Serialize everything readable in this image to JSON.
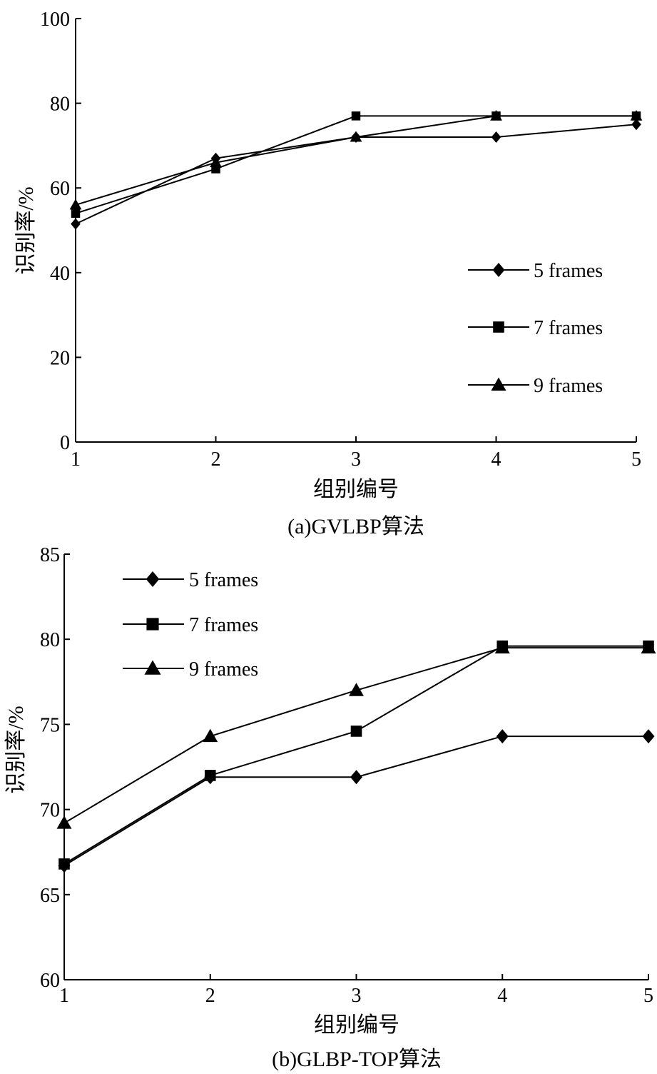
{
  "chart_data": [
    {
      "type": "line",
      "caption": "(a)GVLBP算法",
      "xlabel": "组别编号",
      "ylabel": "识别率/%",
      "x": [
        1,
        2,
        3,
        4,
        5
      ],
      "x_ticks": [
        "1",
        "2",
        "3",
        "4",
        "5"
      ],
      "ylim": [
        0,
        100
      ],
      "y_ticks": [
        "0",
        "20",
        "40",
        "60",
        "80",
        "100"
      ],
      "legend_position": "right",
      "grid": false,
      "series": [
        {
          "name": "5 frames",
          "marker": "diamond",
          "values": [
            51.5,
            67,
            72,
            72,
            75
          ]
        },
        {
          "name": "7 frames",
          "marker": "square",
          "values": [
            54,
            64.5,
            77,
            77,
            77
          ]
        },
        {
          "name": "9 frames",
          "marker": "triangle",
          "values": [
            56,
            66,
            72,
            77,
            77
          ]
        }
      ]
    },
    {
      "type": "line",
      "caption": "(b)GLBP-TOP算法",
      "xlabel": "组别编号",
      "ylabel": "识别率/%",
      "x": [
        1,
        2,
        3,
        4,
        5
      ],
      "x_ticks": [
        "1",
        "2",
        "3",
        "4",
        "5"
      ],
      "ylim": [
        60,
        85
      ],
      "y_ticks": [
        "60",
        "65",
        "70",
        "75",
        "80",
        "85"
      ],
      "legend_position": "top-left",
      "grid": false,
      "series": [
        {
          "name": "5 frames",
          "marker": "diamond",
          "values": [
            66.7,
            71.9,
            71.9,
            74.3,
            74.3
          ]
        },
        {
          "name": "7 frames",
          "marker": "square",
          "values": [
            66.8,
            72,
            74.6,
            79.6,
            79.6
          ]
        },
        {
          "name": "9 frames",
          "marker": "triangle",
          "values": [
            69.2,
            74.3,
            77,
            79.5,
            79.5
          ]
        }
      ]
    }
  ]
}
